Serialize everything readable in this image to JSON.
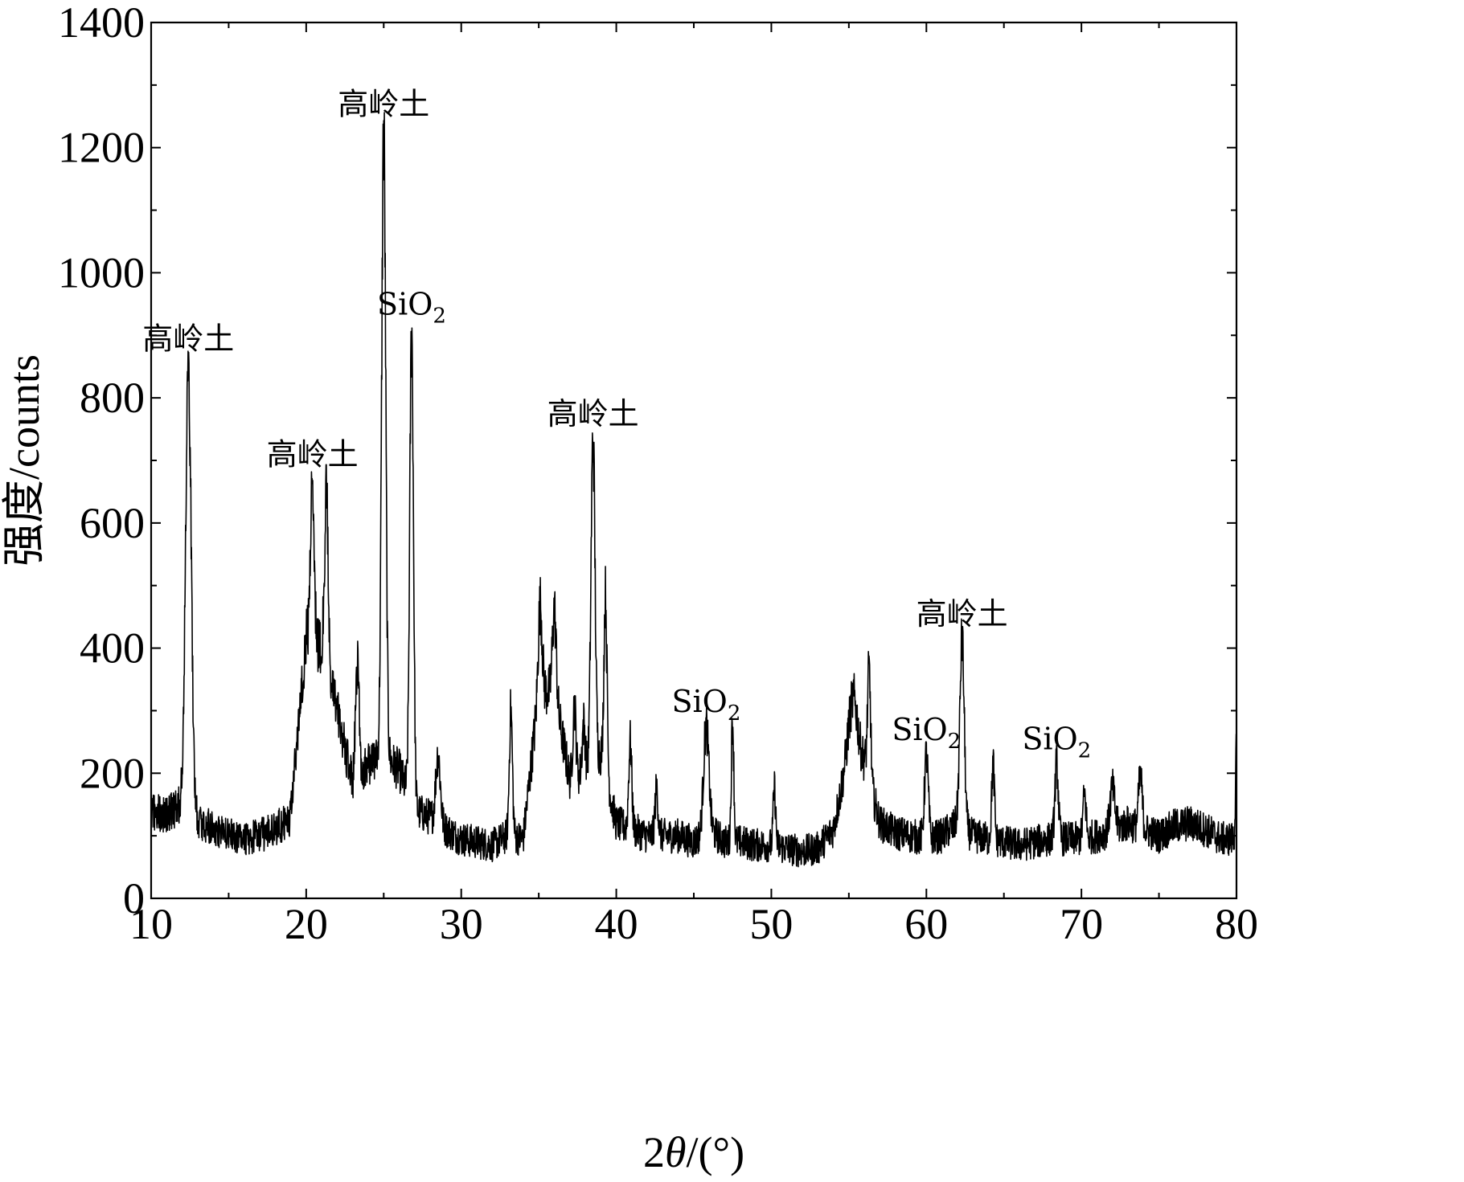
{
  "chart_data": {
    "type": "line",
    "title": "",
    "xlabel": {
      "prefix": "2",
      "symbol": "θ",
      "suffix": "/(°)"
    },
    "ylabel": "强度/counts",
    "xlim": [
      10,
      80
    ],
    "ylim": [
      0,
      1400
    ],
    "x_ticks": [
      10,
      20,
      30,
      40,
      50,
      60,
      70,
      80
    ],
    "y_ticks": [
      0,
      200,
      400,
      600,
      800,
      1000,
      1200,
      1400
    ],
    "x_minor_step": 5,
    "y_minor_step": 100,
    "grid": false,
    "legend": "none",
    "line_color": "#000000",
    "baseline": [
      [
        10,
        140
      ],
      [
        11,
        135
      ],
      [
        12,
        150
      ],
      [
        13,
        125
      ],
      [
        14,
        110
      ],
      [
        15,
        100
      ],
      [
        16,
        95
      ],
      [
        17,
        100
      ],
      [
        18,
        110
      ],
      [
        19,
        130
      ],
      [
        20,
        420
      ],
      [
        21,
        400
      ],
      [
        22,
        300
      ],
      [
        23,
        180
      ],
      [
        24,
        215
      ],
      [
        25,
        230
      ],
      [
        26,
        205
      ],
      [
        27,
        140
      ],
      [
        28,
        130
      ],
      [
        29,
        110
      ],
      [
        30,
        95
      ],
      [
        31,
        90
      ],
      [
        32,
        85
      ],
      [
        33,
        100
      ],
      [
        34,
        95
      ],
      [
        35,
        330
      ],
      [
        36,
        330
      ],
      [
        37,
        190
      ],
      [
        38,
        200
      ],
      [
        39,
        230
      ],
      [
        40,
        120
      ],
      [
        41,
        110
      ],
      [
        42,
        100
      ],
      [
        43,
        100
      ],
      [
        44,
        100
      ],
      [
        45,
        90
      ],
      [
        46,
        110
      ],
      [
        47,
        90
      ],
      [
        48,
        90
      ],
      [
        49,
        85
      ],
      [
        50,
        85
      ],
      [
        51,
        80
      ],
      [
        52,
        75
      ],
      [
        53,
        80
      ],
      [
        54,
        110
      ],
      [
        55,
        240
      ],
      [
        56,
        220
      ],
      [
        57,
        120
      ],
      [
        58,
        105
      ],
      [
        59,
        100
      ],
      [
        60,
        95
      ],
      [
        61,
        100
      ],
      [
        62,
        120
      ],
      [
        63,
        100
      ],
      [
        64,
        95
      ],
      [
        65,
        90
      ],
      [
        66,
        85
      ],
      [
        67,
        90
      ],
      [
        68,
        95
      ],
      [
        69,
        95
      ],
      [
        70,
        95
      ],
      [
        71,
        100
      ],
      [
        72,
        110
      ],
      [
        73,
        120
      ],
      [
        74,
        110
      ],
      [
        75,
        100
      ],
      [
        76,
        115
      ],
      [
        77,
        120
      ],
      [
        78,
        110
      ],
      [
        79,
        95
      ],
      [
        80,
        95
      ]
    ],
    "peaks": [
      {
        "x": 12.4,
        "y": 855,
        "w": 0.18
      },
      {
        "x": 20.4,
        "y": 670,
        "w": 0.12
      },
      {
        "x": 21.3,
        "y": 640,
        "w": 0.12
      },
      {
        "x": 23.3,
        "y": 380,
        "w": 0.12
      },
      {
        "x": 25.0,
        "y": 1230,
        "w": 0.13
      },
      {
        "x": 26.8,
        "y": 910,
        "w": 0.12
      },
      {
        "x": 28.5,
        "y": 230,
        "w": 0.15
      },
      {
        "x": 33.2,
        "y": 300,
        "w": 0.1
      },
      {
        "x": 35.1,
        "y": 470,
        "w": 0.12
      },
      {
        "x": 36.0,
        "y": 460,
        "w": 0.12
      },
      {
        "x": 37.3,
        "y": 310,
        "w": 0.1
      },
      {
        "x": 37.9,
        "y": 280,
        "w": 0.1
      },
      {
        "x": 38.5,
        "y": 735,
        "w": 0.13
      },
      {
        "x": 39.3,
        "y": 485,
        "w": 0.1
      },
      {
        "x": 40.9,
        "y": 250,
        "w": 0.1
      },
      {
        "x": 42.6,
        "y": 175,
        "w": 0.1
      },
      {
        "x": 45.8,
        "y": 275,
        "w": 0.17
      },
      {
        "x": 47.5,
        "y": 285,
        "w": 0.08
      },
      {
        "x": 50.2,
        "y": 175,
        "w": 0.08
      },
      {
        "x": 55.3,
        "y": 320,
        "w": 0.25
      },
      {
        "x": 56.3,
        "y": 365,
        "w": 0.1
      },
      {
        "x": 60.0,
        "y": 230,
        "w": 0.12
      },
      {
        "x": 62.3,
        "y": 415,
        "w": 0.14
      },
      {
        "x": 64.3,
        "y": 215,
        "w": 0.09
      },
      {
        "x": 68.4,
        "y": 215,
        "w": 0.11
      },
      {
        "x": 70.2,
        "y": 165,
        "w": 0.1
      },
      {
        "x": 72.0,
        "y": 175,
        "w": 0.15
      },
      {
        "x": 73.8,
        "y": 195,
        "w": 0.12
      },
      {
        "x": 80.0,
        "y": 240,
        "w": 0.06
      }
    ],
    "annotations": [
      {
        "x": 12.4,
        "y": 855,
        "label": "高岭土",
        "sub": ""
      },
      {
        "x": 20.4,
        "y": 670,
        "label": "高岭土",
        "sub": ""
      },
      {
        "x": 25.0,
        "y": 1230,
        "label": "高岭土",
        "sub": ""
      },
      {
        "x": 26.8,
        "y": 910,
        "label": "SiO",
        "sub": "2"
      },
      {
        "x": 38.5,
        "y": 735,
        "label": "高岭土",
        "sub": ""
      },
      {
        "x": 45.8,
        "y": 275,
        "label": "SiO",
        "sub": "2"
      },
      {
        "x": 60.0,
        "y": 230,
        "label": "SiO",
        "sub": "2"
      },
      {
        "x": 62.3,
        "y": 415,
        "label": "高岭土",
        "sub": ""
      },
      {
        "x": 68.4,
        "y": 215,
        "label": "SiO",
        "sub": "2"
      }
    ]
  }
}
